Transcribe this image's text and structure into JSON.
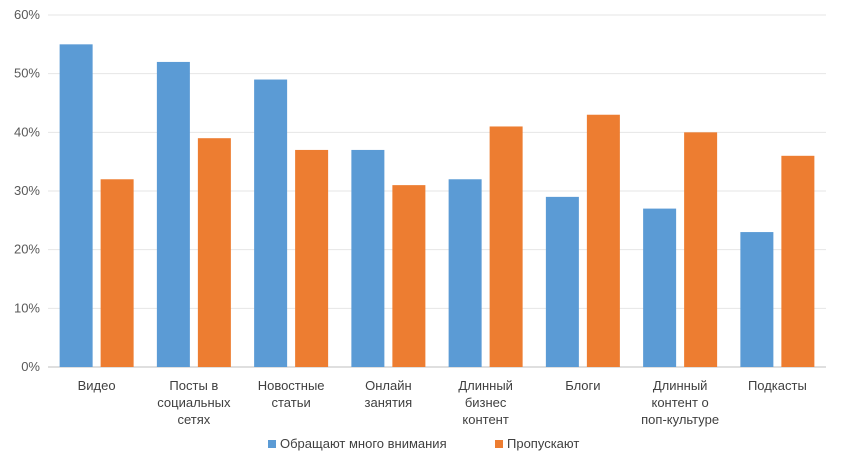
{
  "chart_data": {
    "type": "bar",
    "categories": [
      [
        "Видео"
      ],
      [
        "Посты в",
        "социальных",
        "сетях"
      ],
      [
        "Новостные",
        "статьи"
      ],
      [
        "Онлайн",
        "занятия"
      ],
      [
        "Длинный",
        "бизнес",
        "контент"
      ],
      [
        "Блоги"
      ],
      [
        "Длинный",
        "контент о",
        "поп-культуре"
      ],
      [
        "Подкасты"
      ]
    ],
    "series": [
      {
        "name": "Обращают много внимания",
        "color": "#5B9BD5",
        "values": [
          55,
          52,
          49,
          37,
          32,
          29,
          27,
          23
        ]
      },
      {
        "name": "Пропускают",
        "color": "#ED7D31",
        "values": [
          32,
          39,
          37,
          31,
          41,
          43,
          40,
          36
        ]
      }
    ],
    "yticks": [
      "0%",
      "10%",
      "20%",
      "30%",
      "40%",
      "50%",
      "60%"
    ],
    "ylim": [
      0,
      60
    ],
    "grid": true,
    "legend": "bottom"
  }
}
